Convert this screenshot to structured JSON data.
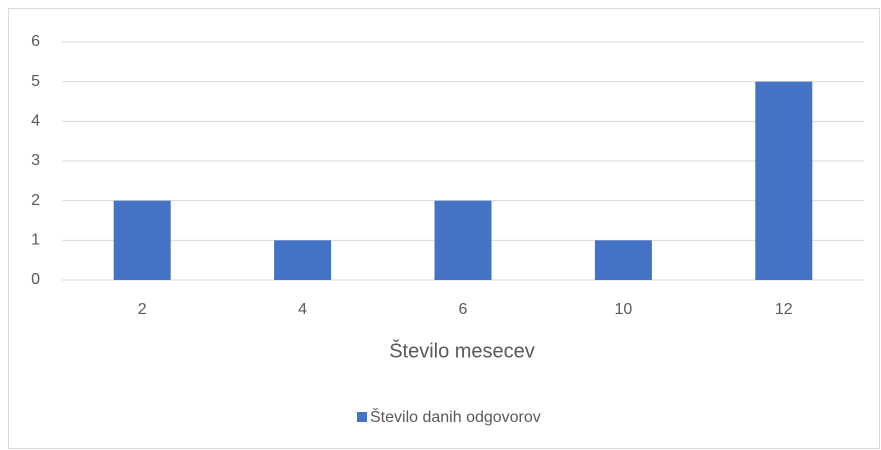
{
  "chart_data": {
    "type": "bar",
    "categories": [
      "2",
      "4",
      "6",
      "10",
      "12"
    ],
    "series": [
      {
        "name": "Število danih odgovorov",
        "color": "#4472c4",
        "values": [
          2,
          1,
          2,
          1,
          5
        ]
      }
    ],
    "x_label": "Število mesecev",
    "ylim": [
      0,
      6
    ],
    "yticks": [
      0,
      1,
      2,
      3,
      4,
      5,
      6
    ],
    "grid": true,
    "legend": "bottom"
  }
}
